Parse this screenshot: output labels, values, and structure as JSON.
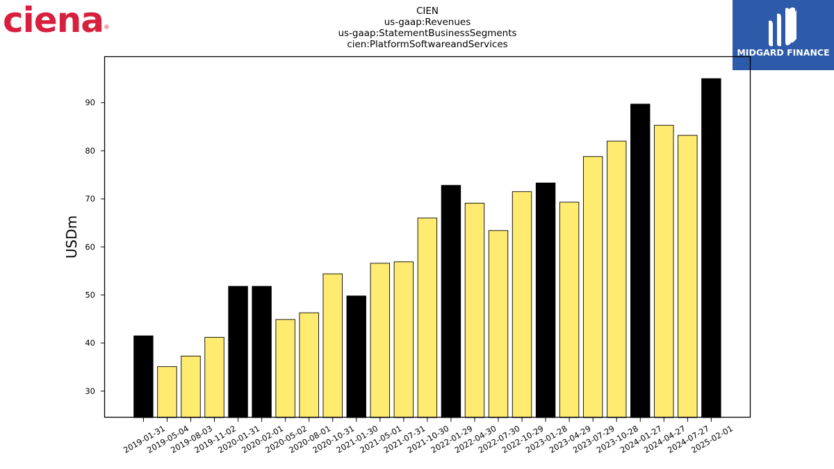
{
  "header": {
    "left_logo_text": "ciena",
    "right_logo_text": "MIDGARD FINANCE"
  },
  "colors": {
    "highlight_bar": "#000000",
    "regular_bar": "#ffeb70",
    "bar_edge": "#000000",
    "ciena_red": "#d71f3e",
    "midgard_blue": "#2d5aa9"
  },
  "chart_data": {
    "type": "bar",
    "title_lines": [
      "CIEN",
      "us-gaap:Revenues",
      "us-gaap:StatementBusinessSegments",
      "cien:PlatformSoftwareandServices"
    ],
    "xlabel": "",
    "ylabel": "USDm",
    "ylim": [
      24.5,
      99.5
    ],
    "yticks": [
      30,
      40,
      50,
      60,
      70,
      80,
      90
    ],
    "grid": false,
    "categories": [
      "2019-01-31",
      "2019-05-04",
      "2019-08-03",
      "2019-11-02",
      "2020-01-31",
      "2020-02-01",
      "2020-05-02",
      "2020-08-01",
      "2020-10-31",
      "2021-01-30",
      "2021-05-01",
      "2021-07-31",
      "2021-10-30",
      "2022-01-29",
      "2022-04-30",
      "2022-07-30",
      "2022-10-29",
      "2023-01-28",
      "2023-04-29",
      "2023-07-29",
      "2023-10-28",
      "2024-01-27",
      "2024-04-27",
      "2024-07-27",
      "2025-02-01"
    ],
    "values": [
      41.5,
      35.1,
      37.3,
      41.2,
      51.8,
      51.8,
      44.9,
      46.3,
      54.4,
      49.8,
      56.6,
      56.9,
      66.0,
      72.8,
      69.1,
      63.4,
      71.5,
      73.3,
      69.3,
      78.8,
      82.0,
      89.7,
      85.3,
      83.2,
      95.0
    ],
    "highlighted": [
      true,
      false,
      false,
      false,
      true,
      true,
      false,
      false,
      false,
      true,
      false,
      false,
      false,
      true,
      false,
      false,
      false,
      true,
      false,
      false,
      false,
      true,
      false,
      false,
      true
    ]
  }
}
